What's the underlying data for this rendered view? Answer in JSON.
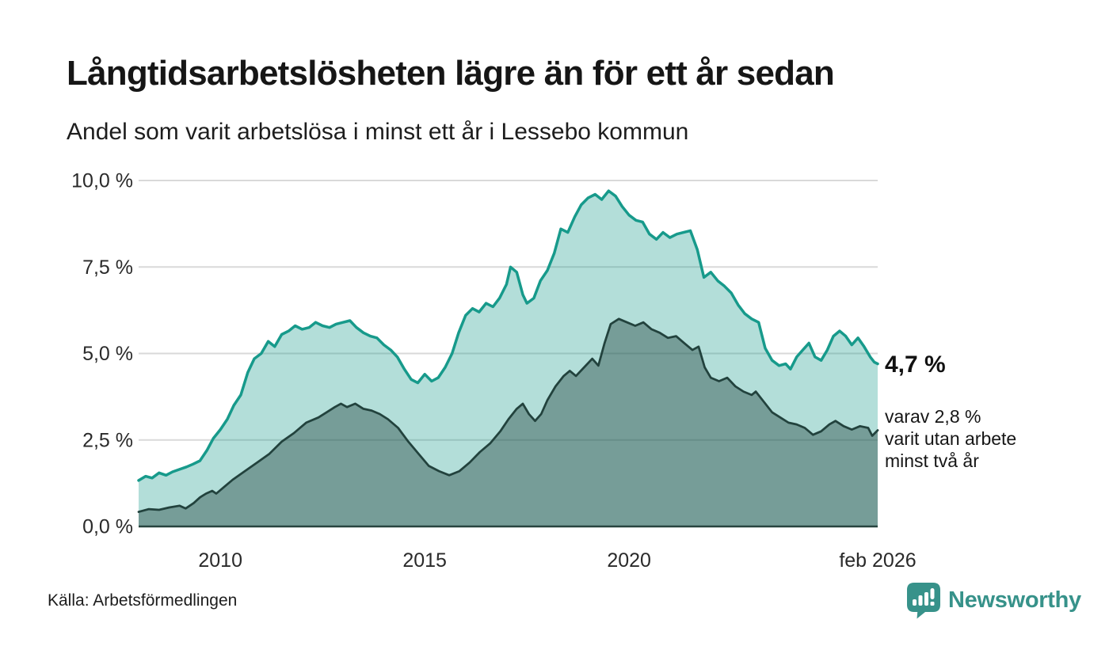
{
  "chart_data": {
    "type": "area",
    "title": "Långtidsarbetslösheten lägre än för ett år sedan",
    "subtitle": "Andel som varit arbetslösa i minst ett år i Lessebo kommun",
    "unit": "%",
    "ylim": [
      0,
      10
    ],
    "x_start": 2008.0,
    "x_end": 2026.083,
    "grid": true,
    "gridline_color": "#d9d9d9",
    "axis_color": "#27443f",
    "tick_text_color": "#2a2a2a",
    "y_ticks": [
      {
        "label": "10,0 %",
        "value": 10
      },
      {
        "label": "7,5 %",
        "value": 7.5
      },
      {
        "label": "5,0 %",
        "value": 5
      },
      {
        "label": "2,5 %",
        "value": 2.5
      },
      {
        "label": "0,0 %",
        "value": 0
      }
    ],
    "x_ticks": [
      {
        "label": "2010",
        "value": 2010
      },
      {
        "label": "2015",
        "value": 2015
      },
      {
        "label": "2020",
        "value": 2020
      },
      {
        "label": "feb 2026",
        "value": 2026.083
      }
    ],
    "series": [
      {
        "name": "minst ett år",
        "line_color": "#179a8b",
        "fill_color": "rgba(23,154,139,0.33)",
        "line_width": 3.5,
        "points": [
          [
            2008.0,
            1.33
          ],
          [
            2008.17,
            1.45
          ],
          [
            2008.33,
            1.4
          ],
          [
            2008.5,
            1.55
          ],
          [
            2008.67,
            1.48
          ],
          [
            2008.83,
            1.58
          ],
          [
            2009.0,
            1.65
          ],
          [
            2009.17,
            1.72
          ],
          [
            2009.33,
            1.8
          ],
          [
            2009.5,
            1.9
          ],
          [
            2009.67,
            2.2
          ],
          [
            2009.83,
            2.55
          ],
          [
            2010.0,
            2.8
          ],
          [
            2010.17,
            3.1
          ],
          [
            2010.33,
            3.5
          ],
          [
            2010.5,
            3.8
          ],
          [
            2010.67,
            4.45
          ],
          [
            2010.83,
            4.85
          ],
          [
            2011.0,
            5.0
          ],
          [
            2011.17,
            5.35
          ],
          [
            2011.33,
            5.2
          ],
          [
            2011.5,
            5.55
          ],
          [
            2011.67,
            5.65
          ],
          [
            2011.83,
            5.8
          ],
          [
            2012.0,
            5.7
          ],
          [
            2012.17,
            5.75
          ],
          [
            2012.33,
            5.9
          ],
          [
            2012.5,
            5.8
          ],
          [
            2012.67,
            5.75
          ],
          [
            2012.83,
            5.85
          ],
          [
            2013.0,
            5.9
          ],
          [
            2013.17,
            5.95
          ],
          [
            2013.33,
            5.75
          ],
          [
            2013.5,
            5.6
          ],
          [
            2013.67,
            5.5
          ],
          [
            2013.83,
            5.45
          ],
          [
            2014.0,
            5.25
          ],
          [
            2014.17,
            5.1
          ],
          [
            2014.33,
            4.9
          ],
          [
            2014.5,
            4.55
          ],
          [
            2014.67,
            4.25
          ],
          [
            2014.83,
            4.15
          ],
          [
            2015.0,
            4.4
          ],
          [
            2015.17,
            4.2
          ],
          [
            2015.33,
            4.3
          ],
          [
            2015.5,
            4.6
          ],
          [
            2015.67,
            5.0
          ],
          [
            2015.83,
            5.6
          ],
          [
            2016.0,
            6.1
          ],
          [
            2016.17,
            6.3
          ],
          [
            2016.33,
            6.2
          ],
          [
            2016.5,
            6.45
          ],
          [
            2016.67,
            6.35
          ],
          [
            2016.83,
            6.6
          ],
          [
            2017.0,
            7.0
          ],
          [
            2017.1,
            7.5
          ],
          [
            2017.25,
            7.35
          ],
          [
            2017.4,
            6.7
          ],
          [
            2017.5,
            6.45
          ],
          [
            2017.67,
            6.6
          ],
          [
            2017.83,
            7.1
          ],
          [
            2018.0,
            7.4
          ],
          [
            2018.17,
            7.9
          ],
          [
            2018.33,
            8.6
          ],
          [
            2018.5,
            8.5
          ],
          [
            2018.67,
            8.95
          ],
          [
            2018.83,
            9.3
          ],
          [
            2019.0,
            9.5
          ],
          [
            2019.17,
            9.6
          ],
          [
            2019.33,
            9.45
          ],
          [
            2019.5,
            9.7
          ],
          [
            2019.67,
            9.55
          ],
          [
            2019.83,
            9.25
          ],
          [
            2020.0,
            9.0
          ],
          [
            2020.17,
            8.85
          ],
          [
            2020.33,
            8.8
          ],
          [
            2020.5,
            8.45
          ],
          [
            2020.67,
            8.3
          ],
          [
            2020.83,
            8.5
          ],
          [
            2021.0,
            8.35
          ],
          [
            2021.17,
            8.45
          ],
          [
            2021.33,
            8.5
          ],
          [
            2021.5,
            8.55
          ],
          [
            2021.67,
            8.0
          ],
          [
            2021.83,
            7.2
          ],
          [
            2022.0,
            7.35
          ],
          [
            2022.17,
            7.1
          ],
          [
            2022.33,
            6.95
          ],
          [
            2022.5,
            6.75
          ],
          [
            2022.67,
            6.4
          ],
          [
            2022.83,
            6.15
          ],
          [
            2023.0,
            6.0
          ],
          [
            2023.17,
            5.9
          ],
          [
            2023.33,
            5.15
          ],
          [
            2023.5,
            4.8
          ],
          [
            2023.67,
            4.65
          ],
          [
            2023.83,
            4.7
          ],
          [
            2023.95,
            4.55
          ],
          [
            2024.1,
            4.9
          ],
          [
            2024.25,
            5.1
          ],
          [
            2024.4,
            5.3
          ],
          [
            2024.55,
            4.9
          ],
          [
            2024.7,
            4.8
          ],
          [
            2024.85,
            5.1
          ],
          [
            2025.0,
            5.5
          ],
          [
            2025.15,
            5.65
          ],
          [
            2025.3,
            5.5
          ],
          [
            2025.45,
            5.25
          ],
          [
            2025.6,
            5.45
          ],
          [
            2025.75,
            5.2
          ],
          [
            2025.9,
            4.9
          ],
          [
            2026.0,
            4.75
          ],
          [
            2026.083,
            4.7
          ]
        ]
      },
      {
        "name": "minst två år",
        "line_color": "#22423d",
        "fill_color": "rgba(34,66,61,0.42)",
        "line_width": 2.75,
        "points": [
          [
            2008.0,
            0.42
          ],
          [
            2008.25,
            0.5
          ],
          [
            2008.5,
            0.48
          ],
          [
            2008.75,
            0.55
          ],
          [
            2009.0,
            0.6
          ],
          [
            2009.15,
            0.52
          ],
          [
            2009.35,
            0.68
          ],
          [
            2009.5,
            0.84
          ],
          [
            2009.65,
            0.95
          ],
          [
            2009.8,
            1.03
          ],
          [
            2009.9,
            0.95
          ],
          [
            2010.1,
            1.15
          ],
          [
            2010.3,
            1.35
          ],
          [
            2010.6,
            1.6
          ],
          [
            2010.9,
            1.85
          ],
          [
            2011.2,
            2.1
          ],
          [
            2011.5,
            2.45
          ],
          [
            2011.8,
            2.7
          ],
          [
            2012.1,
            3.0
          ],
          [
            2012.4,
            3.15
          ],
          [
            2012.6,
            3.3
          ],
          [
            2012.8,
            3.45
          ],
          [
            2012.95,
            3.55
          ],
          [
            2013.1,
            3.45
          ],
          [
            2013.3,
            3.55
          ],
          [
            2013.5,
            3.4
          ],
          [
            2013.7,
            3.35
          ],
          [
            2013.9,
            3.25
          ],
          [
            2014.1,
            3.1
          ],
          [
            2014.35,
            2.85
          ],
          [
            2014.6,
            2.45
          ],
          [
            2014.85,
            2.1
          ],
          [
            2015.1,
            1.75
          ],
          [
            2015.35,
            1.6
          ],
          [
            2015.6,
            1.48
          ],
          [
            2015.85,
            1.6
          ],
          [
            2016.1,
            1.85
          ],
          [
            2016.35,
            2.15
          ],
          [
            2016.6,
            2.4
          ],
          [
            2016.85,
            2.75
          ],
          [
            2017.05,
            3.1
          ],
          [
            2017.25,
            3.4
          ],
          [
            2017.4,
            3.55
          ],
          [
            2017.55,
            3.25
          ],
          [
            2017.7,
            3.05
          ],
          [
            2017.85,
            3.25
          ],
          [
            2018.0,
            3.65
          ],
          [
            2018.2,
            4.05
          ],
          [
            2018.4,
            4.35
          ],
          [
            2018.55,
            4.5
          ],
          [
            2018.7,
            4.35
          ],
          [
            2018.9,
            4.6
          ],
          [
            2019.1,
            4.85
          ],
          [
            2019.25,
            4.65
          ],
          [
            2019.4,
            5.3
          ],
          [
            2019.55,
            5.85
          ],
          [
            2019.75,
            6.0
          ],
          [
            2019.95,
            5.9
          ],
          [
            2020.15,
            5.8
          ],
          [
            2020.35,
            5.9
          ],
          [
            2020.55,
            5.7
          ],
          [
            2020.75,
            5.6
          ],
          [
            2020.95,
            5.45
          ],
          [
            2021.15,
            5.5
          ],
          [
            2021.35,
            5.3
          ],
          [
            2021.55,
            5.1
          ],
          [
            2021.7,
            5.2
          ],
          [
            2021.85,
            4.6
          ],
          [
            2022.0,
            4.3
          ],
          [
            2022.2,
            4.2
          ],
          [
            2022.4,
            4.3
          ],
          [
            2022.6,
            4.05
          ],
          [
            2022.8,
            3.9
          ],
          [
            2023.0,
            3.8
          ],
          [
            2023.1,
            3.9
          ],
          [
            2023.3,
            3.6
          ],
          [
            2023.5,
            3.3
          ],
          [
            2023.7,
            3.15
          ],
          [
            2023.9,
            3.0
          ],
          [
            2024.1,
            2.95
          ],
          [
            2024.3,
            2.85
          ],
          [
            2024.5,
            2.65
          ],
          [
            2024.7,
            2.75
          ],
          [
            2024.9,
            2.95
          ],
          [
            2025.05,
            3.05
          ],
          [
            2025.25,
            2.9
          ],
          [
            2025.45,
            2.8
          ],
          [
            2025.65,
            2.9
          ],
          [
            2025.85,
            2.85
          ],
          [
            2025.95,
            2.62
          ],
          [
            2026.083,
            2.78
          ]
        ]
      }
    ],
    "annotations": {
      "value_label": "4,7 %",
      "detail_lines": [
        "varav 2,8 %",
        "varit utan arbete",
        "minst två år"
      ]
    }
  },
  "footer": {
    "source": "Källa: Arbetsförmedlingen",
    "brand": "Newsworthy",
    "brand_color": "#37928a"
  }
}
